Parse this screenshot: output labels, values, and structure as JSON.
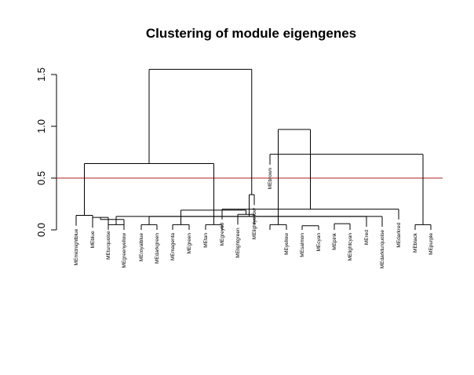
{
  "chart_data": {
    "type": "dendrogram",
    "title": "Clustering of module eigengenes",
    "xlabel": "",
    "ylabel": "",
    "ylim": [
      0,
      1.6
    ],
    "yticks": [
      0.0,
      0.5,
      1.0,
      1.5
    ],
    "ytick_labels": [
      "0.0",
      "0.5",
      "1.0",
      "1.5"
    ],
    "cut_height": 0.5,
    "cut_color": "#b22222",
    "line_color": "#000000",
    "leaves": [
      "MEmidnightblue",
      "MEblue",
      "MEturquoise",
      "MEgreenyellow",
      "MEroyalblue",
      "MEdarkgreen",
      "MEmagenta",
      "MEgreen",
      "MEtan",
      "MEgrey60",
      "MElightgreen",
      "MElightyellow",
      "MEbrown",
      "MEyellow",
      "MEsalmon",
      "MEcyan",
      "MEpink",
      "MElightcyan",
      "MEred",
      "MEdarkturquoise",
      "MEdarkred",
      "MEblack",
      "MEpurple"
    ],
    "merges": [
      {
        "left": "L0",
        "right": "L1",
        "height": 0.14
      },
      {
        "left": "L2",
        "right": "L3",
        "height": 0.05
      },
      {
        "left": "L4",
        "right": "L5",
        "height": 0.05
      },
      {
        "left": "L1",
        "right": "L2",
        "height": 0.12
      },
      {
        "left": "L6",
        "right": "L7",
        "height": 0.05
      },
      {
        "left": "L8",
        "right": "L9",
        "height": 0.05
      },
      {
        "left": "L12",
        "right": "L13",
        "height": 0.05
      },
      {
        "left": "L10",
        "right": "L11",
        "height": 0.15
      },
      {
        "left": "L3",
        "right": "M3",
        "height": 0.1
      },
      {
        "left": "L14",
        "right": "L15",
        "height": 0.04
      },
      {
        "left": "L16",
        "right": "L17",
        "height": 0.06
      },
      {
        "left": "L18",
        "right": "M2",
        "height": 0.13
      },
      {
        "left": "L21",
        "right": "L22",
        "height": 0.05
      },
      {
        "left": "L19",
        "right": "M1",
        "height": 0.13
      },
      {
        "left": "M4",
        "right": "M7",
        "height": 0.19
      },
      {
        "left": "M0",
        "right": "M5",
        "height": 0.64
      },
      {
        "left": "L20",
        "right": "L9",
        "height": 0.2
      },
      {
        "left": "L11",
        "right": "M13",
        "height": 0.34
      },
      {
        "left": "L12",
        "right": "M12",
        "height": 0.73
      },
      {
        "left": "M6",
        "right": "M16",
        "height": 0.97
      },
      {
        "left": "M15",
        "right": "M17",
        "height": 1.55
      }
    ]
  }
}
